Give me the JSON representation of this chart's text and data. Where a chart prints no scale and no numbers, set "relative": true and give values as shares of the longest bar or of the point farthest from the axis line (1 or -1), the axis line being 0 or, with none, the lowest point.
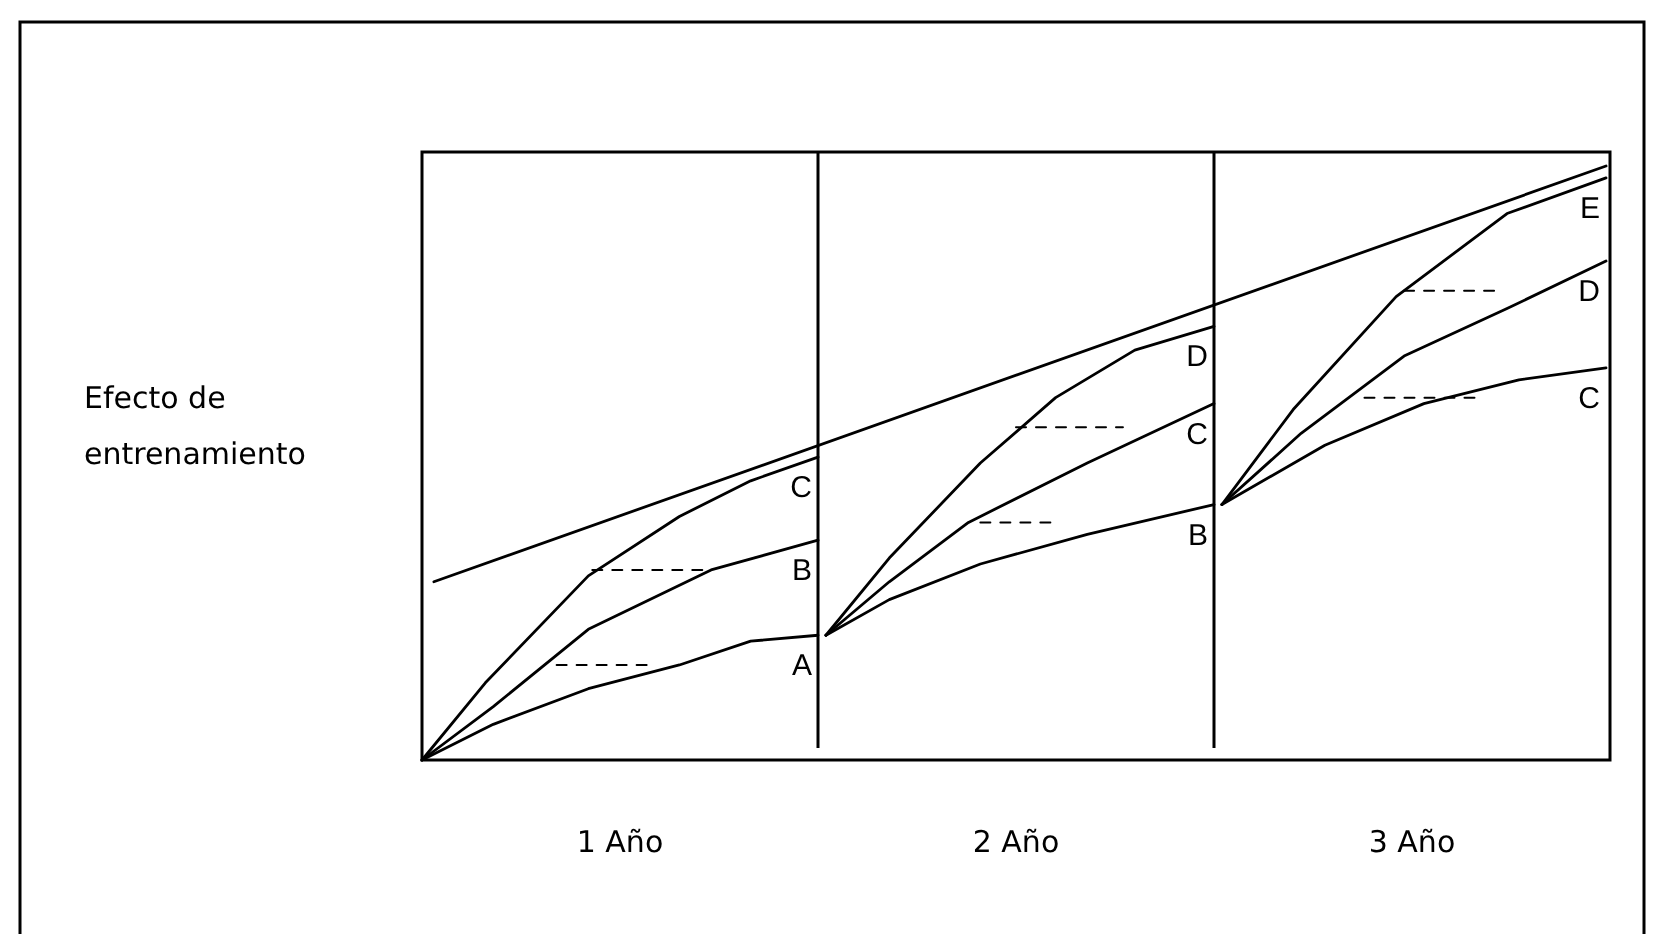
{
  "chart_data": {
    "type": "line",
    "relative": true,
    "ylabel": "Efecto de entrenamiento",
    "xlim": [
      0,
      3
    ],
    "xticks": [
      {
        "value": 0.5,
        "label": "1 Año"
      },
      {
        "value": 1.5,
        "label": "2 Año"
      },
      {
        "value": 2.5,
        "label": "3 Año"
      }
    ],
    "grid": false,
    "marker": "none",
    "line_style": "solid",
    "ref_lines": [
      {
        "axis": "x",
        "value": 1,
        "color": "#000000"
      },
      {
        "axis": "x",
        "value": 2,
        "color": "#000000"
      }
    ],
    "series": [
      {
        "name": "A",
        "color": "#000000",
        "x": [
          0,
          0.18,
          0.42,
          0.65,
          0.83,
          1
        ],
        "values": [
          0,
          0.06,
          0.12,
          0.16,
          0.2,
          0.21
        ]
      },
      {
        "name": "B",
        "color": "#000000",
        "x": [
          0,
          0.18,
          0.42,
          0.73,
          1
        ],
        "values": [
          0,
          0.09,
          0.22,
          0.32,
          0.37
        ]
      },
      {
        "name": "C",
        "color": "#000000",
        "x": [
          0,
          0.16,
          0.42,
          0.65,
          0.83,
          1
        ],
        "values": [
          0,
          0.13,
          0.31,
          0.41,
          0.47,
          0.51
        ]
      },
      {
        "name": "B",
        "color": "#000000",
        "x": [
          1.02,
          1.18,
          1.41,
          1.68,
          2
        ],
        "values": [
          0.21,
          0.27,
          0.33,
          0.38,
          0.43
        ]
      },
      {
        "name": "C",
        "color": "#000000",
        "x": [
          1.02,
          1.18,
          1.38,
          1.68,
          2
        ],
        "values": [
          0.21,
          0.3,
          0.4,
          0.5,
          0.6
        ]
      },
      {
        "name": "D",
        "color": "#000000",
        "x": [
          1.02,
          1.18,
          1.41,
          1.6,
          1.8,
          2
        ],
        "values": [
          0.21,
          0.34,
          0.5,
          0.61,
          0.69,
          0.73
        ]
      },
      {
        "name": "C",
        "color": "#000000",
        "x": [
          2.02,
          2.28,
          2.53,
          2.77,
          2.99
        ],
        "values": [
          0.43,
          0.53,
          0.6,
          0.64,
          0.66
        ]
      },
      {
        "name": "D",
        "color": "#000000",
        "x": [
          2.02,
          2.22,
          2.48,
          2.74,
          2.99
        ],
        "values": [
          0.43,
          0.55,
          0.68,
          0.76,
          0.84
        ]
      },
      {
        "name": "E",
        "color": "#000000",
        "x": [
          2.02,
          2.2,
          2.46,
          2.74,
          2.99
        ],
        "values": [
          0.43,
          0.59,
          0.78,
          0.92,
          0.98
        ]
      },
      {
        "color": "#000000",
        "x": [
          0.03,
          2.99
        ],
        "values": [
          0.3,
          1
        ]
      },
      {
        "color": "#000000",
        "line_style": "dashed",
        "x": [
          0.34,
          0.57
        ],
        "values": [
          0.16,
          0.16
        ]
      },
      {
        "color": "#000000",
        "line_style": "dashed",
        "x": [
          0.43,
          0.73
        ],
        "values": [
          0.32,
          0.32
        ]
      },
      {
        "color": "#000000",
        "line_style": "dashed",
        "x": [
          1.41,
          1.6
        ],
        "values": [
          0.4,
          0.4
        ]
      },
      {
        "color": "#000000",
        "line_style": "dashed",
        "x": [
          1.5,
          1.77
        ],
        "values": [
          0.56,
          0.56
        ]
      },
      {
        "color": "#000000",
        "line_style": "dashed",
        "x": [
          2.38,
          2.67
        ],
        "values": [
          0.61,
          0.61
        ]
      },
      {
        "color": "#000000",
        "line_style": "dashed",
        "x": [
          2.48,
          2.72
        ],
        "values": [
          0.79,
          0.79
        ]
      }
    ]
  }
}
